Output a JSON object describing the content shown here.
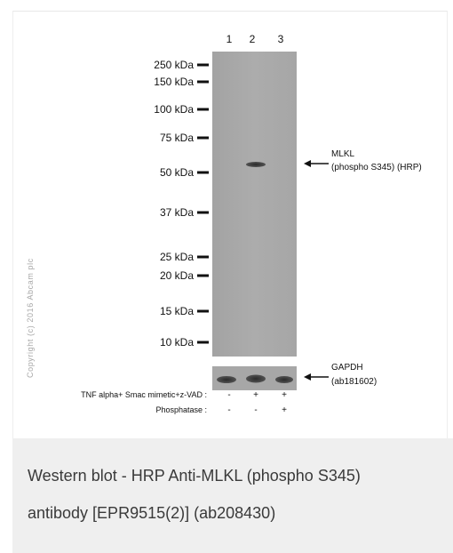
{
  "figure": {
    "lane_numbers": [
      "1",
      "2",
      "3"
    ],
    "markers": [
      "250 kDa",
      "150 kDa",
      "100 kDa",
      "75 kDa",
      "50 kDa",
      "37 kDa",
      "25 kDa",
      "20 kDa",
      "15 kDa",
      "10 kDa"
    ],
    "target_label": {
      "line1": "MLKL",
      "line2": "(phospho S345) (HRP)"
    },
    "control_label": {
      "line1": "GAPDH",
      "line2": "(ab181602)"
    },
    "conditions": [
      {
        "name": "TNF alpha+ Smac mimetic+z-VAD :",
        "lanes": [
          "-",
          "+",
          "+"
        ]
      },
      {
        "name": "Phosphatase :",
        "lanes": [
          "-",
          "-",
          "+"
        ]
      }
    ],
    "copyright": "Copyright (c) 2016 Abcam plc",
    "colors": {
      "membrane": "#aaaaaa",
      "band": "#3a3a3a",
      "caption_bg": "#efefef"
    }
  },
  "caption": {
    "line1": "Western blot - HRP Anti-MLKL (phospho S345)",
    "line2": "antibody [EPR9515(2)] (ab208430)"
  }
}
